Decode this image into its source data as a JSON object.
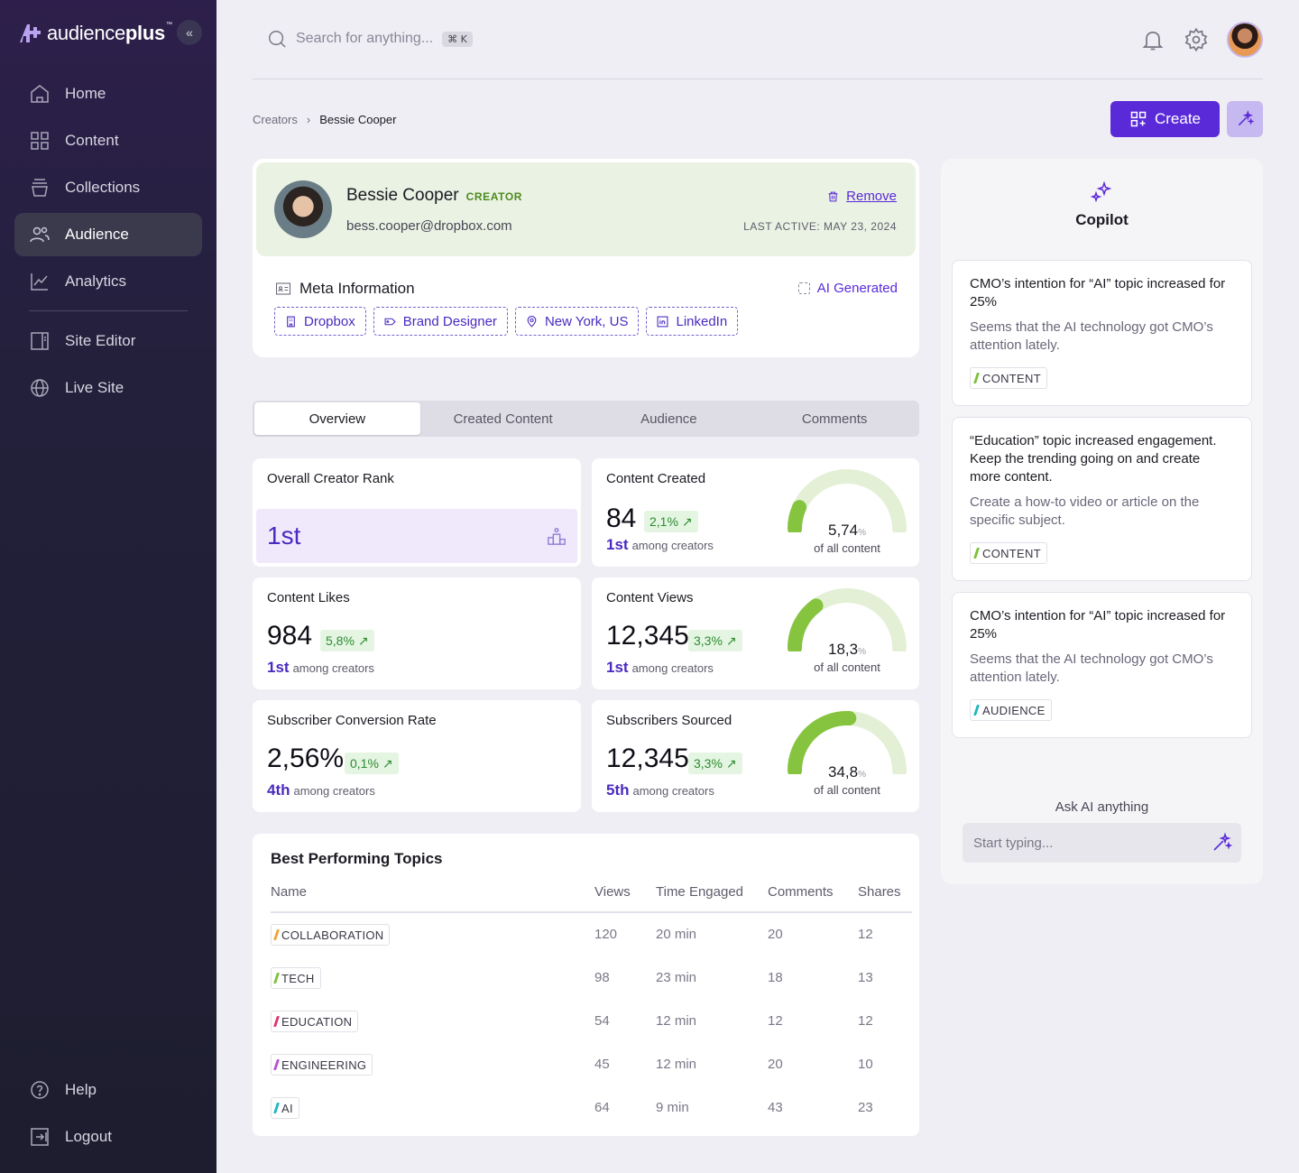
{
  "app": {
    "logo_prefix": "audience",
    "logo_bold": "plus",
    "logo_tm": "™"
  },
  "sidebar": {
    "items": [
      {
        "label": "Home",
        "icon": "home-icon"
      },
      {
        "label": "Content",
        "icon": "grid-icon"
      },
      {
        "label": "Collections",
        "icon": "collection-icon"
      },
      {
        "label": "Audience",
        "icon": "users-icon",
        "active": true
      },
      {
        "label": "Analytics",
        "icon": "chart-icon"
      },
      {
        "label": "Site Editor",
        "icon": "layout-icon"
      },
      {
        "label": "Live Site",
        "icon": "globe-icon"
      }
    ],
    "bottom": [
      {
        "label": "Help",
        "icon": "help-icon"
      },
      {
        "label": "Logout",
        "icon": "logout-icon"
      }
    ]
  },
  "search": {
    "placeholder": "Search for anything...",
    "shortcut": "⌘ K"
  },
  "breadcrumb": {
    "parent": "Creators",
    "current": "Bessie Cooper"
  },
  "actions": {
    "create_label": "Create"
  },
  "profile": {
    "name": "Bessie Cooper",
    "role": "CREATOR",
    "email": "bess.cooper@dropbox.com",
    "remove_label": "Remove",
    "last_active": "LAST ACTIVE: MAY 23, 2024",
    "meta_title": "Meta Information",
    "ai_generated": "AI Generated",
    "chips": [
      "Dropbox",
      "Brand Designer",
      "New York, US",
      "LinkedIn"
    ]
  },
  "tabs": [
    "Overview",
    "Created Content",
    "Audience",
    "Comments"
  ],
  "metrics": {
    "rank": {
      "label": "Overall Creator Rank",
      "value": "1st"
    },
    "content_created": {
      "label": "Content Created",
      "value": "84",
      "change": "2,1%",
      "rank": "1st",
      "rank_suffix": "among creators",
      "share": "5,74",
      "share_unit": "%",
      "share_label": "of all content",
      "share_fraction": 0.0574
    },
    "likes": {
      "label": "Content Likes",
      "value": "984",
      "change": "5,8%",
      "rank": "1st",
      "rank_suffix": "among creators"
    },
    "views": {
      "label": "Content Views",
      "value": "12,345",
      "change": "3,3%",
      "rank": "1st",
      "rank_suffix": "among creators",
      "share": "18,3",
      "share_unit": "%",
      "share_label": "of all content",
      "share_fraction": 0.183
    },
    "conversion": {
      "label": "Subscriber Conversion Rate",
      "value": "2,56%",
      "change": "0,1%",
      "rank": "4th",
      "rank_suffix": "among creators"
    },
    "sourced": {
      "label": "Subscribers Sourced",
      "value": "12,345",
      "change": "3,3%",
      "rank": "5th",
      "rank_suffix": "among creators",
      "share": "34,8",
      "share_unit": "%",
      "share_label": "of all content",
      "share_fraction": 0.348
    }
  },
  "topics": {
    "title": "Best Performing Topics",
    "columns": [
      "Name",
      "Views",
      "Time Engaged",
      "Comments",
      "Shares"
    ],
    "rows": [
      {
        "name": "COLLABORATION",
        "color": "#f0a43a",
        "views": "120",
        "time": "20 min",
        "comments": "20",
        "shares": "12"
      },
      {
        "name": "TECH",
        "color": "#7cc23a",
        "views": "98",
        "time": "23 min",
        "comments": "18",
        "shares": "13"
      },
      {
        "name": "EDUCATION",
        "color": "#e0356f",
        "views": "54",
        "time": "12 min",
        "comments": "12",
        "shares": "12"
      },
      {
        "name": "ENGINEERING",
        "color": "#b84fd6",
        "views": "45",
        "time": "12 min",
        "comments": "20",
        "shares": "10"
      },
      {
        "name": "AI",
        "color": "#1fb8c0",
        "views": "64",
        "time": "9 min",
        "comments": "43",
        "shares": "23"
      }
    ]
  },
  "copilot": {
    "title": "Copilot",
    "insights": [
      {
        "title": "CMO’s intention for “AI” topic increased for 25%",
        "desc": "Seems that the AI technology got CMO’s attention lately.",
        "tag": "CONTENT",
        "tag_color": "#7cc23a"
      },
      {
        "title": "“Education” topic increased engagement. Keep the trending going on and create more content.",
        "desc": "Create a how-to video or article on the specific subject.",
        "tag": "CONTENT",
        "tag_color": "#7cc23a"
      },
      {
        "title": "CMO’s intention for “AI” topic increased for 25%",
        "desc": "Seems that the AI technology got CMO’s attention lately.",
        "tag": "AUDIENCE",
        "tag_color": "#1fb8c0"
      }
    ],
    "ask_label": "Ask AI anything",
    "ask_placeholder": "Start typing..."
  },
  "colors": {
    "accent": "#5a2ad8",
    "sidebar_bg": "#22203a",
    "gauge_track": "#e3f0d5",
    "gauge_fill": "#86c440"
  }
}
